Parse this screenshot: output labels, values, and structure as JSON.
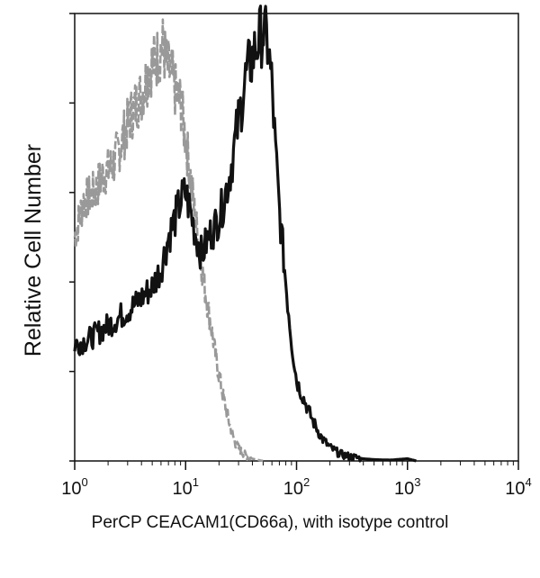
{
  "chart_data": {
    "type": "line",
    "title": "",
    "xlabel": "PerCP CEACAM1(CD66a), with isotype control",
    "ylabel": "Relative Cell Number",
    "x_scale": "log",
    "xlim": [
      1,
      10000
    ],
    "ylim": [
      0,
      100
    ],
    "x_ticks": [
      {
        "base": "10",
        "exp": "0",
        "value": 1
      },
      {
        "base": "10",
        "exp": "1",
        "value": 10
      },
      {
        "base": "10",
        "exp": "2",
        "value": 100
      },
      {
        "base": "10",
        "exp": "3",
        "value": 1000
      },
      {
        "base": "10",
        "exp": "4",
        "value": 10000
      }
    ],
    "grid": false,
    "legend": "none",
    "series": [
      {
        "color": "#999999",
        "style": "dashed",
        "x": [
          1.0,
          1.2,
          1.5,
          1.8,
          2.2,
          2.7,
          3.3,
          4.0,
          4.8,
          5.5,
          6.2,
          6.8,
          7.5,
          8.2,
          9.0,
          10.0,
          11.0,
          12.0,
          13.5,
          15.0,
          17.0,
          19.0,
          22.0,
          25.0,
          28.0,
          32.0,
          36.0,
          40.0,
          50.0
        ],
        "y": [
          50,
          58,
          60,
          64,
          66,
          72,
          78,
          82,
          88,
          90,
          93,
          88,
          86,
          82,
          80,
          72,
          64,
          56,
          46,
          38,
          30,
          22,
          14,
          8,
          4,
          2,
          1,
          0.5,
          0
        ]
      },
      {
        "color": "#111111",
        "style": "solid",
        "x": [
          1.0,
          1.3,
          1.7,
          2.2,
          2.8,
          3.5,
          4.2,
          5.0,
          6.0,
          7.0,
          8.0,
          9.0,
          10.0,
          11.0,
          12.5,
          14.0,
          16.0,
          18.0,
          21.0,
          25.0,
          30.0,
          35.0,
          40.0,
          45.0,
          50.0,
          55.0,
          60.0,
          65.0,
          70.0,
          80.0,
          90.0,
          100.0,
          120.0,
          140.0,
          170.0,
          200.0,
          250.0,
          300.0,
          400.0,
          500.0,
          700.0,
          1000.0,
          1200.0
        ],
        "y": [
          26,
          27,
          29,
          31,
          33,
          35,
          37,
          39,
          43,
          50,
          54,
          58,
          60,
          56,
          50,
          46,
          50,
          52,
          56,
          64,
          76,
          86,
          90,
          94,
          96,
          93,
          84,
          68,
          56,
          40,
          27,
          18,
          13,
          9,
          5,
          3,
          1.5,
          1,
          0.5,
          0.3,
          0.2,
          0.5,
          0
        ]
      }
    ]
  }
}
